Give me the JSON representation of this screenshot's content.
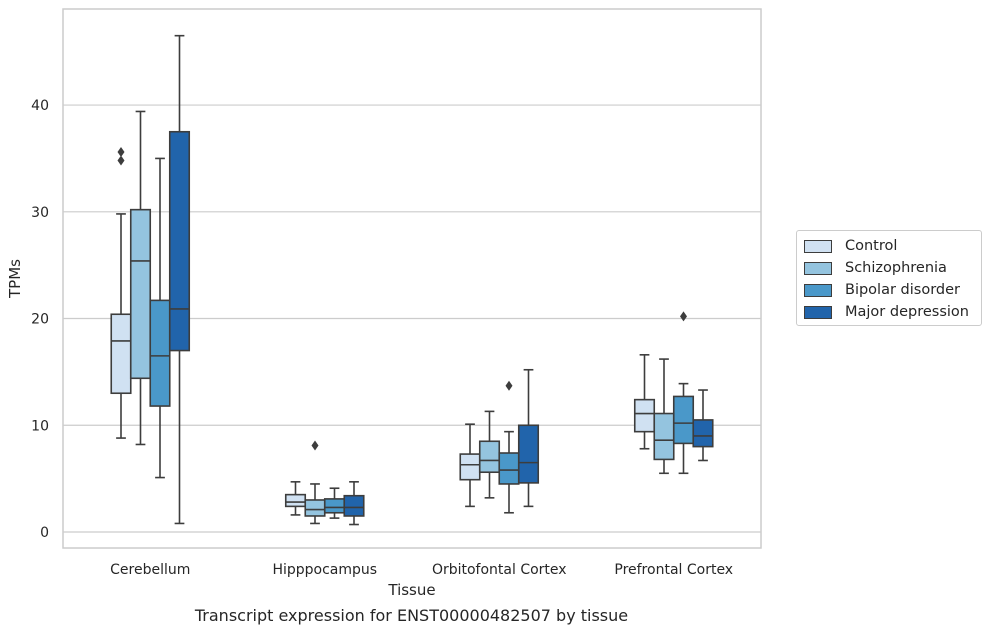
{
  "chart_data": {
    "type": "box",
    "title": "Transcript expression for ENST00000482507 by tissue",
    "xlabel": "Tissue",
    "ylabel": "TPMs",
    "ylim": [
      -1.5,
      49
    ],
    "yticks": [
      0,
      10,
      20,
      30,
      40
    ],
    "categories": [
      "Cerebellum",
      "Hipppocampus",
      "Orbitofontal Cortex",
      "Prefrontal Cortex"
    ],
    "grid": "horizontal",
    "legend_position": "right",
    "series": [
      {
        "name": "Control",
        "color": "#d0e1f2",
        "boxes": [
          {
            "whislo": 8.8,
            "q1": 13.0,
            "med": 17.9,
            "q3": 20.4,
            "whishi": 29.8,
            "fliers": [
              34.8,
              35.6
            ]
          },
          {
            "whislo": 1.6,
            "q1": 2.4,
            "med": 2.8,
            "q3": 3.5,
            "whishi": 4.7,
            "fliers": []
          },
          {
            "whislo": 2.4,
            "q1": 4.9,
            "med": 6.3,
            "q3": 7.3,
            "whishi": 10.1,
            "fliers": []
          },
          {
            "whislo": 7.8,
            "q1": 9.4,
            "med": 11.1,
            "q3": 12.4,
            "whishi": 16.6,
            "fliers": []
          }
        ]
      },
      {
        "name": "Schizophrenia",
        "color": "#94c4df",
        "boxes": [
          {
            "whislo": 8.2,
            "q1": 14.4,
            "med": 25.4,
            "q3": 30.2,
            "whishi": 39.4,
            "fliers": []
          },
          {
            "whislo": 0.8,
            "q1": 1.5,
            "med": 2.1,
            "q3": 3.0,
            "whishi": 4.5,
            "fliers": [
              8.1
            ]
          },
          {
            "whislo": 3.2,
            "q1": 5.6,
            "med": 6.7,
            "q3": 8.5,
            "whishi": 11.3,
            "fliers": []
          },
          {
            "whislo": 5.5,
            "q1": 6.8,
            "med": 8.6,
            "q3": 11.1,
            "whishi": 16.2,
            "fliers": []
          }
        ]
      },
      {
        "name": "Bipolar disorder",
        "color": "#4a98c9",
        "boxes": [
          {
            "whislo": 5.1,
            "q1": 11.8,
            "med": 16.5,
            "q3": 21.7,
            "whishi": 35.0,
            "fliers": []
          },
          {
            "whislo": 1.3,
            "q1": 1.8,
            "med": 2.3,
            "q3": 3.1,
            "whishi": 4.1,
            "fliers": []
          },
          {
            "whislo": 1.8,
            "q1": 4.5,
            "med": 5.8,
            "q3": 7.4,
            "whishi": 9.4,
            "fliers": [
              13.7
            ]
          },
          {
            "whislo": 5.5,
            "q1": 8.3,
            "med": 10.2,
            "q3": 12.7,
            "whishi": 13.9,
            "fliers": [
              20.2
            ]
          }
        ]
      },
      {
        "name": "Major depression",
        "color": "#2164ab",
        "boxes": [
          {
            "whislo": 0.8,
            "q1": 17.0,
            "med": 20.9,
            "q3": 37.5,
            "whishi": 46.5,
            "fliers": []
          },
          {
            "whislo": 0.7,
            "q1": 1.5,
            "med": 2.3,
            "q3": 3.4,
            "whishi": 4.7,
            "fliers": []
          },
          {
            "whislo": 2.4,
            "q1": 4.6,
            "med": 6.5,
            "q3": 10.0,
            "whishi": 15.2,
            "fliers": []
          },
          {
            "whislo": 6.7,
            "q1": 8.0,
            "med": 9.0,
            "q3": 10.5,
            "whishi": 13.3,
            "fliers": []
          }
        ]
      }
    ]
  }
}
